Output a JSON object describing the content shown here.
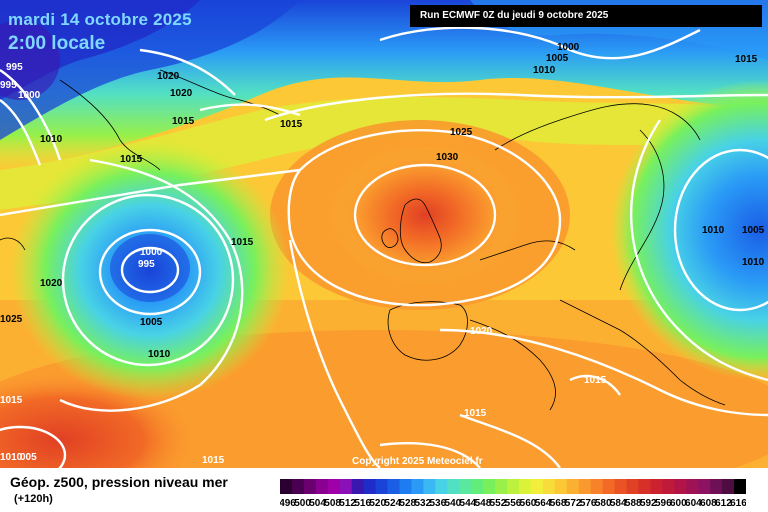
{
  "header": {
    "date_title": "mardi 14 octobre 2025",
    "time_title": "2:00 locale",
    "run_info": "Run ECMWF 0Z du jeudi 9 octobre 2025"
  },
  "copyright": "Copyright 2025 Meteociel.fr",
  "footer": {
    "parameter_title": "Géop. z500, pression niveau mer",
    "lead_time": "(+120h)"
  },
  "legend_scale": {
    "colors": [
      "#2a0030",
      "#4a0050",
      "#6a0070",
      "#8a0090",
      "#a000a8",
      "#8a10b8",
      "#3a18b0",
      "#1f2cc8",
      "#1a44d8",
      "#1a5ee6",
      "#1d7cf0",
      "#2a9af6",
      "#3ab8f4",
      "#48d2e6",
      "#52e0c4",
      "#5ae89e",
      "#62ec7a",
      "#78f05c",
      "#98f048",
      "#bcf23e",
      "#dcf238",
      "#f2ee3a",
      "#f8dc3a",
      "#fcc836",
      "#fcb032",
      "#fa9a2e",
      "#f8822a",
      "#f26a26",
      "#ea5424",
      "#e04024",
      "#d63028",
      "#cc2230",
      "#c01a3a",
      "#b21448",
      "#a01256",
      "#8e1262",
      "#6e1058",
      "#4e0c40",
      "#000000"
    ],
    "labels": [
      "496",
      "500",
      "504",
      "508",
      "512",
      "516",
      "520",
      "524",
      "528",
      "532",
      "536",
      "540",
      "544",
      "548",
      "552",
      "556",
      "560",
      "564",
      "568",
      "572",
      "576",
      "580",
      "584",
      "588",
      "592",
      "596",
      "600",
      "604",
      "608",
      "612",
      "616"
    ]
  },
  "isobar_labels": [
    {
      "text": "1000"
    },
    {
      "text": "1005"
    },
    {
      "text": "1010"
    },
    {
      "text": "1015"
    },
    {
      "text": "995"
    },
    {
      "text": "995"
    },
    {
      "text": "1000"
    },
    {
      "text": "1010"
    },
    {
      "text": "1020"
    },
    {
      "text": "1020"
    },
    {
      "text": "1015"
    },
    {
      "text": "1015"
    },
    {
      "text": "1015"
    },
    {
      "text": "1025"
    },
    {
      "text": "1030"
    },
    {
      "text": "1015"
    },
    {
      "text": "1000"
    },
    {
      "text": "995"
    },
    {
      "text": "1020"
    },
    {
      "text": "1005"
    },
    {
      "text": "1010"
    },
    {
      "text": "1025"
    },
    {
      "text": "1020"
    },
    {
      "text": "1015"
    },
    {
      "text": "1015"
    },
    {
      "text": "1015"
    },
    {
      "text": "1010"
    },
    {
      "text": "005"
    },
    {
      "text": "1015"
    },
    {
      "text": "1010"
    },
    {
      "text": "1005"
    },
    {
      "text": "1010"
    }
  ]
}
